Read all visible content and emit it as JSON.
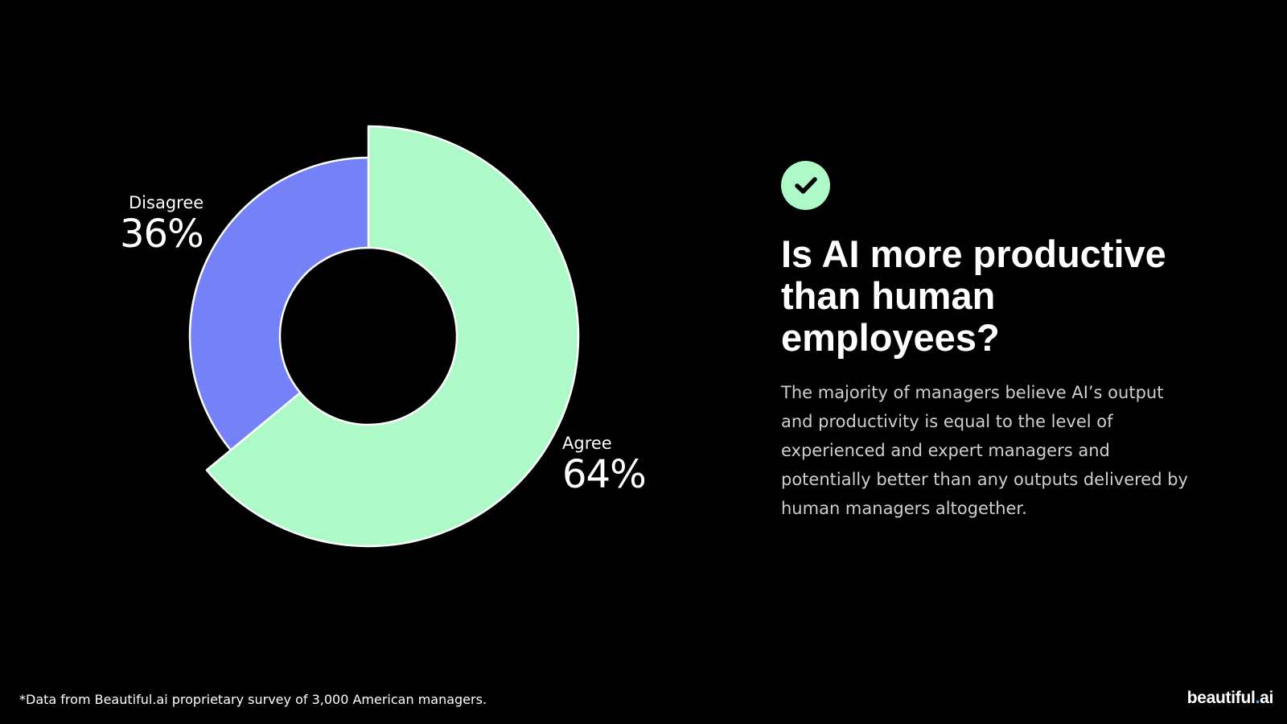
{
  "chart_data": {
    "type": "pie",
    "donut": true,
    "slices": [
      {
        "label": "Agree",
        "value": 64,
        "display": "64%",
        "color": "#aef9c8"
      },
      {
        "label": "Disagree",
        "value": 36,
        "display": "36%",
        "color": "#7581f6"
      }
    ],
    "highlighted": "Agree",
    "stroke_color": "#ffffff"
  },
  "badge": {
    "icon": "checkmark-icon",
    "color": "#aef9c8"
  },
  "headline": "Is AI more productive than human employees?",
  "body": "The majority of managers believe AI’s output and productivity is equal to the level of experienced and expert managers and potentially better than any outputs delivered by human managers altogether.",
  "footnote": "*Data from Beautiful.ai proprietary survey of 3,000 American managers.",
  "brand": {
    "name": "beautiful",
    "dot": ".",
    "suffix": "ai"
  }
}
